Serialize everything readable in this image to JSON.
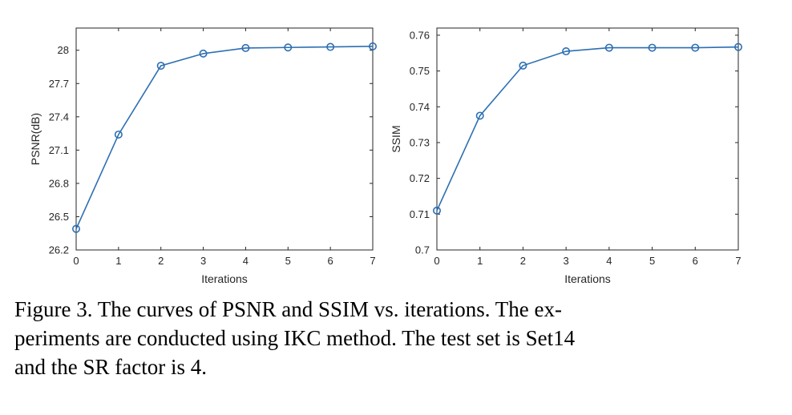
{
  "chart_data": [
    {
      "type": "line",
      "title": "",
      "xlabel": "Iterations",
      "ylabel": "PSNR(dB)",
      "x": [
        0,
        1,
        2,
        3,
        4,
        5,
        6,
        7
      ],
      "xlim": [
        0,
        7
      ],
      "ylim": [
        26.2,
        28.2
      ],
      "xticks": [
        "0",
        "1",
        "2",
        "3",
        "4",
        "5",
        "6",
        "7"
      ],
      "yticks": [
        "26.2",
        "26.5",
        "26.8",
        "27.1",
        "27.4",
        "27.7",
        "28"
      ],
      "ytick_values": [
        26.2,
        26.5,
        26.8,
        27.1,
        27.4,
        27.7,
        28.0
      ],
      "series": [
        {
          "values": [
            26.39,
            27.24,
            27.86,
            27.97,
            28.02,
            28.025,
            28.03,
            28.035
          ],
          "color": "#2d6fb3",
          "marker": "circle"
        }
      ],
      "grid": false,
      "legend": "none"
    },
    {
      "type": "line",
      "title": "",
      "xlabel": "Iterations",
      "ylabel": "SSIM",
      "x": [
        0,
        1,
        2,
        3,
        4,
        5,
        6,
        7
      ],
      "xlim": [
        0,
        7
      ],
      "ylim": [
        0.7,
        0.762
      ],
      "xticks": [
        "0",
        "1",
        "2",
        "3",
        "4",
        "5",
        "6",
        "7"
      ],
      "yticks": [
        "0.7",
        "0.71",
        "0.72",
        "0.73",
        "0.74",
        "0.75",
        "0.76"
      ],
      "ytick_values": [
        0.7,
        0.71,
        0.72,
        0.73,
        0.74,
        0.75,
        0.76
      ],
      "series": [
        {
          "values": [
            0.711,
            0.7375,
            0.7515,
            0.7555,
            0.7565,
            0.7565,
            0.7565,
            0.7567
          ],
          "color": "#2d6fb3",
          "marker": "circle"
        }
      ],
      "grid": false,
      "legend": "none"
    }
  ],
  "caption": "Figure 3. The curves of PSNR and SSIM vs. iterations. The ex-\nperiments are conducted using IKC method. The test set is Set14\nand the SR factor is 4."
}
